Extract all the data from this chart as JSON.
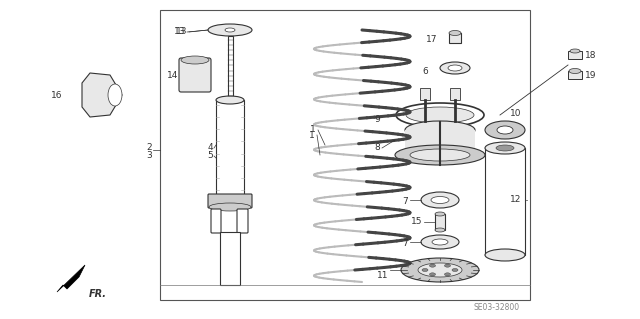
{
  "bg_color": "#ffffff",
  "line_color": "#333333",
  "part_fill": "#e8e8e8",
  "part_fill_dark": "#cccccc",
  "diagram_code": "SE03-32800",
  "fig_w": 6.4,
  "fig_h": 3.19,
  "dpi": 100
}
